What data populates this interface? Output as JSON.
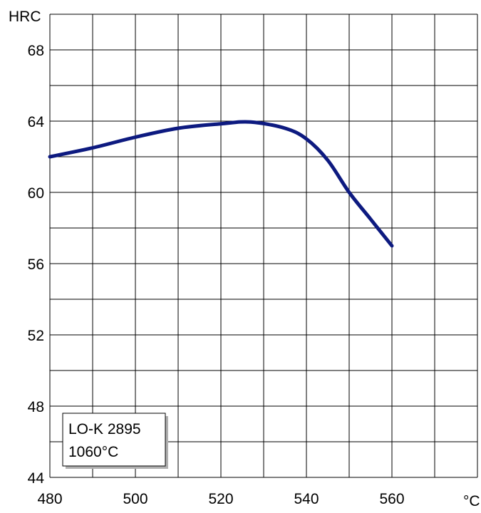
{
  "chart_data": {
    "type": "line",
    "title": "",
    "xlabel": "°C",
    "ylabel": "HRC",
    "xlim": [
      480,
      580
    ],
    "ylim": [
      44,
      70
    ],
    "x_ticks": [
      480,
      500,
      520,
      540,
      560
    ],
    "y_ticks": [
      44,
      48,
      52,
      56,
      60,
      64,
      68
    ],
    "grid": true,
    "series": [
      {
        "name": "",
        "color": "#0d1a80",
        "points": [
          {
            "x": 480,
            "y": 62.0
          },
          {
            "x": 490,
            "y": 62.5
          },
          {
            "x": 500,
            "y": 63.1
          },
          {
            "x": 510,
            "y": 63.6
          },
          {
            "x": 520,
            "y": 63.85
          },
          {
            "x": 527,
            "y": 63.95
          },
          {
            "x": 535,
            "y": 63.6
          },
          {
            "x": 540,
            "y": 63.0
          },
          {
            "x": 545,
            "y": 61.8
          },
          {
            "x": 550,
            "y": 60.0
          },
          {
            "x": 555,
            "y": 58.5
          },
          {
            "x": 560,
            "y": 57.0
          }
        ]
      }
    ],
    "legend": {
      "placement": "bottom-left",
      "lines": [
        "LO-K 2895",
        "1060°C"
      ]
    }
  }
}
